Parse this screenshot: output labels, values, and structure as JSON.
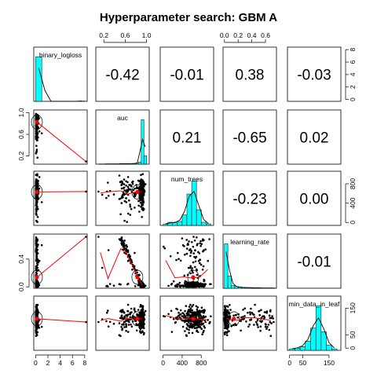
{
  "chart_data": {
    "type": "scatter",
    "title": "Hyperparameter search: GBM A",
    "variables": [
      "binary_logloss",
      "auc",
      "num_trees",
      "learning_rate",
      "min_data_in_leaf"
    ],
    "correlations": [
      {
        "row": 0,
        "col": 1,
        "value": "-0.42"
      },
      {
        "row": 0,
        "col": 2,
        "value": "-0.01"
      },
      {
        "row": 0,
        "col": 3,
        "value": "0.38"
      },
      {
        "row": 0,
        "col": 4,
        "value": "-0.03"
      },
      {
        "row": 1,
        "col": 2,
        "value": "0.21"
      },
      {
        "row": 1,
        "col": 3,
        "value": "-0.65"
      },
      {
        "row": 1,
        "col": 4,
        "value": "0.02"
      },
      {
        "row": 2,
        "col": 3,
        "value": "-0.23"
      },
      {
        "row": 2,
        "col": 4,
        "value": "0.00"
      },
      {
        "row": 3,
        "col": 4,
        "value": "-0.01"
      }
    ],
    "axes": {
      "top": [
        {
          "col": 1,
          "ticks": [
            "0.2",
            "0.6",
            "1.0"
          ],
          "values": [
            0.2,
            0.6,
            1.0
          ]
        },
        {
          "col": 3,
          "ticks": [
            "0.0",
            "0.2",
            "0.4",
            "0.6"
          ],
          "values": [
            0.0,
            0.2,
            0.4,
            0.6
          ]
        }
      ],
      "bottom": [
        {
          "col": 0,
          "ticks": [
            "0",
            "2",
            "4",
            "6",
            "8"
          ],
          "values": [
            0,
            2,
            4,
            6,
            8
          ]
        },
        {
          "col": 2,
          "ticks": [
            "0",
            "400",
            "800"
          ],
          "values": [
            0,
            400,
            800
          ]
        },
        {
          "col": 4,
          "ticks": [
            "0",
            "50",
            "150"
          ],
          "values": [
            0,
            50,
            150
          ]
        }
      ],
      "left": [
        {
          "row": 1,
          "ticks": [
            "0.2",
            "0.6",
            "1.0"
          ],
          "values": [
            0.2,
            0.6,
            1.0
          ]
        },
        {
          "row": 3,
          "ticks": [
            "0.0",
            "0.4"
          ],
          "values": [
            0.0,
            0.4
          ]
        }
      ],
      "right": [
        {
          "row": 0,
          "ticks": [
            "0",
            "2",
            "4",
            "6",
            "8"
          ],
          "values": [
            0,
            2,
            4,
            6,
            8
          ]
        },
        {
          "row": 2,
          "ticks": [
            "0",
            "400",
            "800"
          ],
          "values": [
            0,
            400,
            800
          ]
        },
        {
          "row": 4,
          "ticks": [
            "0",
            "50",
            "150"
          ],
          "values": [
            0,
            50,
            150
          ]
        }
      ]
    },
    "ranges": [
      [
        -0.3,
        8.4
      ],
      [
        0.05,
        1.05
      ],
      [
        -60,
        1060
      ],
      [
        -0.02,
        0.76
      ],
      [
        -8,
        195
      ]
    ],
    "histograms": [
      {
        "var": "binary_logloss",
        "breaks": [
          0,
          1,
          2,
          3,
          4,
          5,
          6,
          7,
          8
        ],
        "counts": [
          290,
          0,
          0,
          0,
          0,
          0,
          0,
          2
        ]
      },
      {
        "var": "auc",
        "breaks": [
          0.1,
          0.15,
          0.2,
          0.25,
          0.3,
          0.35,
          0.4,
          0.45,
          0.5,
          0.55,
          0.6,
          0.65,
          0.7,
          0.75,
          0.8,
          0.85,
          0.9,
          0.95,
          1.0
        ],
        "counts": [
          1,
          0,
          1,
          1,
          1,
          1,
          1,
          1,
          2,
          2,
          2,
          2,
          3,
          3,
          4,
          10,
          215,
          40
        ]
      },
      {
        "var": "num_trees",
        "breaks": [
          0,
          100,
          200,
          300,
          400,
          500,
          600,
          700,
          800,
          900,
          1000
        ],
        "counts": [
          4,
          12,
          10,
          15,
          40,
          120,
          170,
          60,
          12,
          6
        ]
      },
      {
        "var": "learning_rate",
        "breaks": [
          0.0,
          0.05,
          0.1,
          0.15,
          0.2,
          0.25,
          0.3,
          0.35,
          0.4,
          0.45,
          0.5,
          0.55,
          0.6,
          0.65,
          0.7,
          0.75
        ],
        "counts": [
          200,
          55,
          12,
          8,
          5,
          4,
          3,
          3,
          2,
          2,
          1,
          1,
          1,
          1,
          1
        ]
      },
      {
        "var": "min_data_in_leaf",
        "breaks": [
          0,
          20,
          40,
          60,
          80,
          100,
          120,
          140,
          160,
          180
        ],
        "counts": [
          4,
          6,
          10,
          25,
          60,
          120,
          50,
          14,
          4
        ]
      }
    ],
    "colors": {
      "histogram_fill": "#00FFFF",
      "smoother": "#FF0000",
      "points": "#000000",
      "ellipse": "#000000"
    },
    "lower_panels": "scatter with loess smoother and correlation ellipse",
    "upper_panels": "Pearson correlation coefficient",
    "diagonal": "histogram with density line",
    "grid": false
  }
}
